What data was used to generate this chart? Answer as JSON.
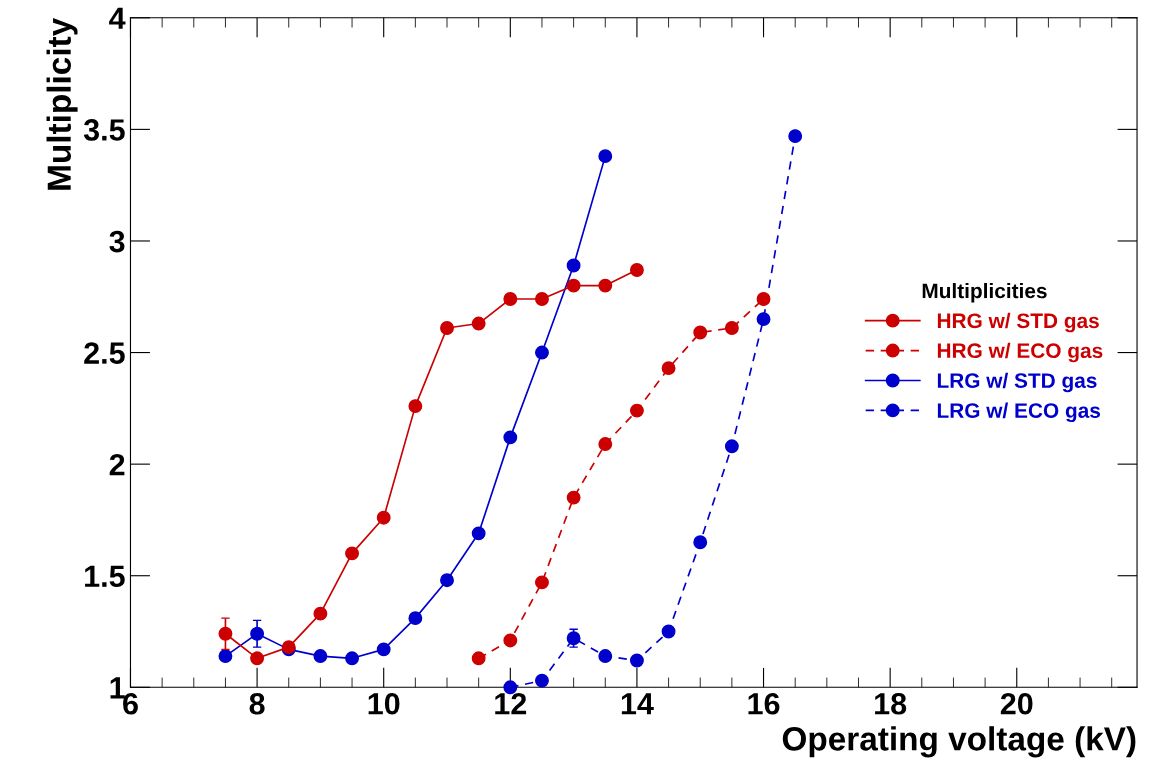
{
  "chart_data": {
    "type": "line",
    "xlabel": "Operating voltage (kV)",
    "ylabel": "Multiplicity",
    "legend_title": "Multiplicities",
    "legend": "right",
    "grid": false,
    "marker": "circle",
    "xlim": [
      6,
      21.9
    ],
    "xticks": [
      6,
      8,
      10,
      12,
      14,
      16,
      18,
      20
    ],
    "ylim": [
      1,
      4
    ],
    "yticks": [
      1,
      1.5,
      2,
      2.5,
      3,
      3.5,
      4
    ],
    "series": [
      {
        "name": "HRG w/ STD gas",
        "color": "#cc0000",
        "line_style": "solid",
        "x": [
          7.5,
          8,
          8.5,
          9,
          9.5,
          10,
          10.5,
          11,
          11.5,
          12,
          12.5,
          13,
          13.5,
          14
        ],
        "values": [
          1.24,
          1.13,
          1.18,
          1.33,
          1.6,
          1.76,
          2.26,
          2.61,
          2.63,
          2.74,
          2.74,
          2.8,
          2.8,
          2.87
        ],
        "errors": [
          0.07,
          null,
          null,
          null,
          null,
          null,
          null,
          null,
          null,
          null,
          null,
          null,
          null,
          null
        ]
      },
      {
        "name": "HRG w/ ECO gas",
        "color": "#cc0000",
        "line_style": "dashed",
        "x": [
          11.5,
          12,
          12.5,
          13,
          13.5,
          14,
          14.5,
          15,
          15.5,
          16
        ],
        "values": [
          1.13,
          1.21,
          1.47,
          1.85,
          2.09,
          2.24,
          2.43,
          2.59,
          2.61,
          2.74
        ]
      },
      {
        "name": "LRG w/ STD gas",
        "color": "#0000cc",
        "line_style": "solid",
        "x": [
          7.5,
          8,
          8.5,
          9,
          9.5,
          10,
          10.5,
          11,
          11.5,
          12,
          12.5,
          13,
          13.5
        ],
        "values": [
          1.14,
          1.24,
          1.17,
          1.14,
          1.13,
          1.17,
          1.31,
          1.48,
          1.69,
          2.12,
          2.5,
          2.89,
          3.38
        ],
        "errors": [
          null,
          0.06,
          null,
          null,
          null,
          null,
          null,
          null,
          null,
          null,
          null,
          null,
          null
        ]
      },
      {
        "name": "LRG w/ ECO gas",
        "color": "#0000cc",
        "line_style": "dashed",
        "x": [
          12,
          12.5,
          13,
          13.5,
          14,
          14.5,
          15,
          15.5,
          16,
          16.5
        ],
        "values": [
          1.0,
          1.03,
          1.22,
          1.14,
          1.12,
          1.25,
          1.65,
          2.08,
          2.65,
          3.47
        ],
        "errors": [
          null,
          null,
          0.04,
          null,
          null,
          null,
          null,
          null,
          null,
          null
        ]
      }
    ]
  }
}
